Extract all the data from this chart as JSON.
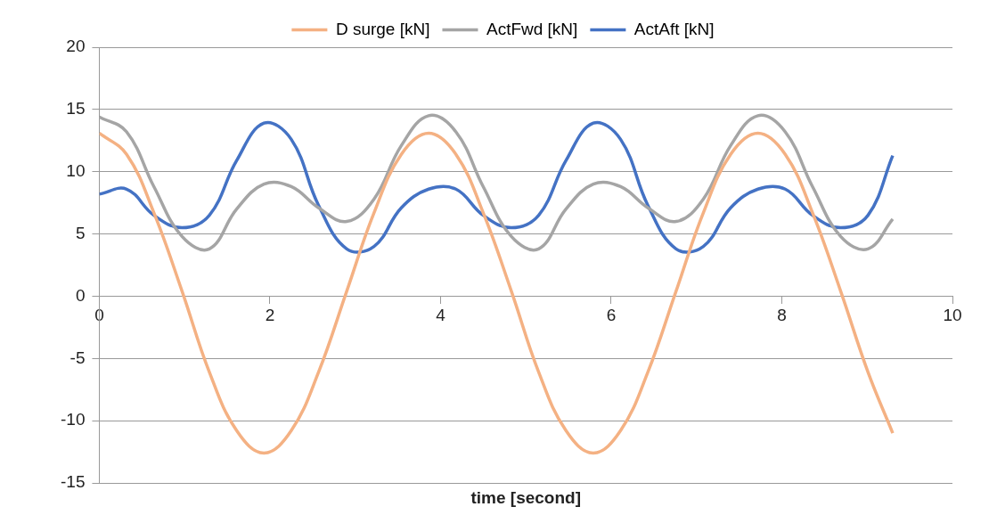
{
  "chart_data": {
    "type": "line",
    "xlabel": "time [second]",
    "x": [
      0,
      0.32,
      0.64,
      0.97,
      1.29,
      1.61,
      1.93,
      2.25,
      2.57,
      2.9,
      3.22,
      3.54,
      3.86,
      4.18,
      4.5,
      4.83,
      5.15,
      5.47,
      5.79,
      6.11,
      6.43,
      6.76,
      7.08,
      7.4,
      7.72,
      8.04,
      8.36,
      8.69,
      9.01,
      9.3
    ],
    "series": [
      {
        "name": "D surge [kN]",
        "color": "#f4b183",
        "values": [
          13.1,
          11.4,
          6.7,
          0.4,
          -6.1,
          -10.8,
          -12.6,
          -10.8,
          -6.1,
          0.4,
          6.7,
          11.4,
          13.1,
          11.4,
          6.7,
          0.4,
          -6.1,
          -10.8,
          -12.6,
          -10.8,
          -6.1,
          0.4,
          6.7,
          11.4,
          13.1,
          11.4,
          6.7,
          0.4,
          -6.1,
          -11
        ]
      },
      {
        "name": "ActFwd [kN]",
        "color": "#a5a5a5",
        "values": [
          14.4,
          13.2,
          8.8,
          4.8,
          3.8,
          7.0,
          9.0,
          8.8,
          7.1,
          6.0,
          7.8,
          12.1,
          14.5,
          13.2,
          8.8,
          4.8,
          3.8,
          7.0,
          9.0,
          8.8,
          7.1,
          6.0,
          7.8,
          12.1,
          14.5,
          13.2,
          8.8,
          4.8,
          3.8,
          6.2
        ]
      },
      {
        "name": "ActAft [kN]",
        "color": "#4472c4",
        "values": [
          8.2,
          8.6,
          6.5,
          5.5,
          6.5,
          10.9,
          13.9,
          12.6,
          7.3,
          3.8,
          4.0,
          7.1,
          8.6,
          8.6,
          6.5,
          5.5,
          6.5,
          10.9,
          13.9,
          12.6,
          7.3,
          3.8,
          4.0,
          7.1,
          8.6,
          8.6,
          6.5,
          5.5,
          6.5,
          11.3
        ]
      }
    ],
    "xlim": [
      0,
      10
    ],
    "xticks": [
      0,
      2,
      4,
      6,
      8,
      10
    ],
    "ylim": [
      -15,
      20
    ],
    "yticks": [
      -15,
      -10,
      -5,
      0,
      5,
      10,
      15,
      20
    ],
    "grid": "y",
    "legend": "top",
    "marker": "none",
    "line_style": "solid"
  }
}
